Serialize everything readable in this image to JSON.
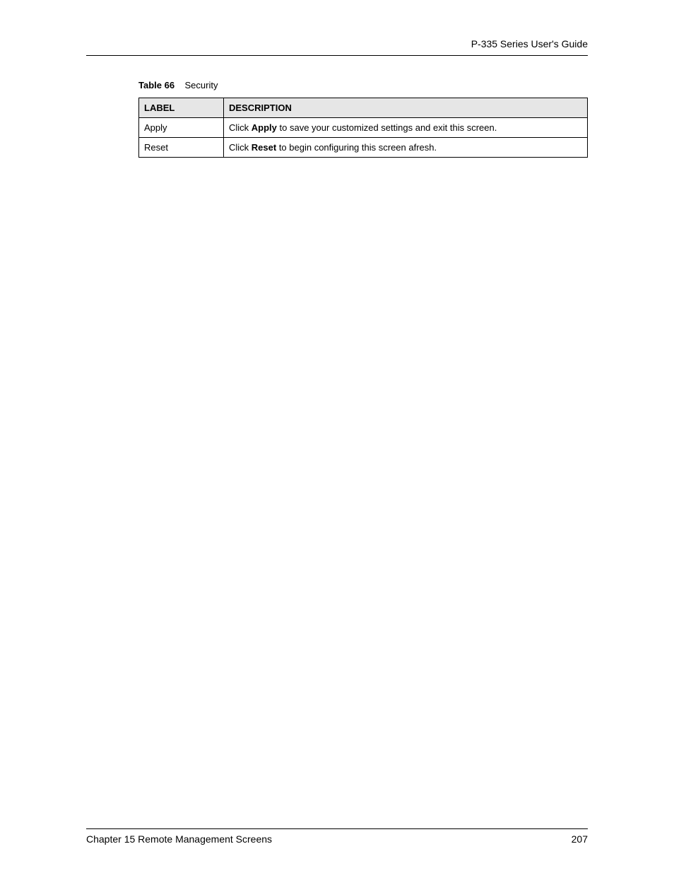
{
  "header": {
    "guide_title": "P-335 Series User's Guide"
  },
  "table": {
    "caption_label": "Table 66",
    "caption_title": "Security",
    "columns": {
      "label": "LABEL",
      "description": "DESCRIPTION"
    },
    "rows": [
      {
        "label": "Apply",
        "desc_prefix": "Click ",
        "desc_bold": "Apply",
        "desc_suffix": " to save your customized settings and exit this screen."
      },
      {
        "label": "Reset",
        "desc_prefix": "Click ",
        "desc_bold": "Reset",
        "desc_suffix": " to begin configuring this screen afresh."
      }
    ]
  },
  "footer": {
    "chapter": "Chapter 15 Remote Management Screens",
    "page_number": "207"
  }
}
